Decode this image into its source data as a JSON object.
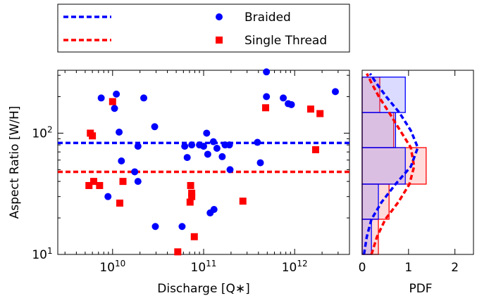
{
  "chart_data": [
    {
      "type": "scatter",
      "xlabel": "Discharge [Q∗]",
      "ylabel": "Aspect Ratio [W/H]",
      "x_scale": "log",
      "y_scale": "log",
      "xlim": [
        2500000000.0,
        4000000000000.0
      ],
      "ylim": [
        10,
        330
      ],
      "x_ticks": [
        {
          "value": 10000000000.0,
          "base": "10",
          "exp": "10"
        },
        {
          "value": 100000000000.0,
          "base": "10",
          "exp": "11"
        },
        {
          "value": 1000000000000.0,
          "base": "10",
          "exp": "12"
        }
      ],
      "y_ticks": [
        {
          "value": 10,
          "base": "10",
          "exp": "1"
        },
        {
          "value": 100,
          "base": "10",
          "exp": "2"
        }
      ],
      "legend": {
        "placement": "top",
        "entries": [
          {
            "label": "",
            "kind": "dashed-line",
            "color": "#0000ff"
          },
          {
            "label": "Braided",
            "kind": "circle",
            "color": "#0000ff"
          },
          {
            "label": "",
            "kind": "dashed-line",
            "color": "#ff0000"
          },
          {
            "label": "Single Thread",
            "kind": "square",
            "color": "#ff0000"
          }
        ]
      },
      "reference_lines": [
        {
          "series": "Braided",
          "y": 83,
          "color": "#0000ff"
        },
        {
          "series": "Single Thread",
          "y": 48,
          "color": "#ff0000"
        }
      ],
      "series": [
        {
          "name": "Braided",
          "marker": "circle",
          "color": "#0000ff",
          "points": [
            [
              490000000000.0,
              320
            ],
            [
              2800000000000.0,
              220
            ],
            [
              11000000000.0,
              210
            ],
            [
              490000000000.0,
              200
            ],
            [
              7500000000.0,
              195
            ],
            [
              22000000000.0,
              195
            ],
            [
              750000000000.0,
              195
            ],
            [
              850000000000.0,
              175
            ],
            [
              920000000000.0,
              172
            ],
            [
              10500000000.0,
              160
            ],
            [
              29000000000.0,
              113
            ],
            [
              11800000000.0,
              102
            ],
            [
              108000000000.0,
              100
            ],
            [
              128000000000.0,
              85
            ],
            [
              172000000000.0,
              80
            ],
            [
              390000000000.0,
              84
            ],
            [
              19000000000.0,
              78
            ],
            [
              62000000000.0,
              78
            ],
            [
              74000000000.0,
              80
            ],
            [
              90000000000.0,
              80
            ],
            [
              100000000000.0,
              78
            ],
            [
              140000000000.0,
              75
            ],
            [
              192000000000.0,
              80
            ],
            [
              160000000000.0,
              64
            ],
            [
              111000000000.0,
              67
            ],
            [
              66000000000.0,
              63
            ],
            [
              12500000000.0,
              59
            ],
            [
              420000000000.0,
              57
            ],
            [
              17500000000.0,
              48
            ],
            [
              195000000000.0,
              50
            ],
            [
              19000000000.0,
              40
            ],
            [
              8900000000.0,
              30
            ],
            [
              118000000000.0,
              22
            ],
            [
              130000000000.0,
              23.5
            ],
            [
              29500000000.0,
              17
            ],
            [
              58000000000.0,
              17
            ]
          ]
        },
        {
          "name": "Single Thread",
          "marker": "square",
          "color": "#ff0000",
          "points": [
            [
              480000000000.0,
              162
            ],
            [
              1500000000000.0,
              158
            ],
            [
              1900000000000.0,
              145
            ],
            [
              10000000000.0,
              182
            ],
            [
              5700000000.0,
              100
            ],
            [
              6000000000.0,
              95
            ],
            [
              1700000000000.0,
              73
            ],
            [
              13000000000.0,
              40
            ],
            [
              6200000000.0,
              40
            ],
            [
              5500000000.0,
              37
            ],
            [
              7200000000.0,
              37
            ],
            [
              72000000000.0,
              37
            ],
            [
              74000000000.0,
              32
            ],
            [
              74000000000.0,
              30
            ],
            [
              71000000000.0,
              27
            ],
            [
              270000000000.0,
              27.5
            ],
            [
              12000000000.0,
              26.5
            ],
            [
              79000000000.0,
              14
            ],
            [
              52000000000.0,
              10.5
            ]
          ]
        }
      ]
    },
    {
      "type": "area",
      "xlabel": "PDF",
      "ylabel": "",
      "xlim": [
        0,
        2.4
      ],
      "ylim": [
        10,
        330
      ],
      "y_scale": "log",
      "x_ticks": [
        0,
        1,
        2
      ],
      "series": [
        {
          "name": "Braided",
          "color": "#0000ff",
          "histogram": [
            {
              "y0": 10,
              "y1": 19.5,
              "pdf": 0.2
            },
            {
              "y0": 19.5,
              "y1": 38,
              "pdf": 0.35
            },
            {
              "y0": 38,
              "y1": 76,
              "pdf": 0.93
            },
            {
              "y0": 76,
              "y1": 148,
              "pdf": 0.72
            },
            {
              "y0": 148,
              "y1": 290,
              "pdf": 0.93
            }
          ],
          "curve": [
            [
              10,
              0.04
            ],
            [
              14,
              0.1
            ],
            [
              19.5,
              0.2
            ],
            [
              27,
              0.42
            ],
            [
              38,
              0.72
            ],
            [
              53,
              1.05
            ],
            [
              76,
              1.2
            ],
            [
              105,
              1.05
            ],
            [
              148,
              0.8
            ],
            [
              200,
              0.52
            ],
            [
              260,
              0.3
            ],
            [
              310,
              0.17
            ]
          ]
        },
        {
          "name": "Single Thread",
          "color": "#ff0000",
          "histogram": [
            {
              "y0": 10,
              "y1": 19.5,
              "pdf": 0.35
            },
            {
              "y0": 19.5,
              "y1": 38,
              "pdf": 0.58
            },
            {
              "y0": 38,
              "y1": 76,
              "pdf": 1.38
            },
            {
              "y0": 76,
              "y1": 148,
              "pdf": 0.68
            },
            {
              "y0": 148,
              "y1": 290,
              "pdf": 0.38
            }
          ],
          "curve": [
            [
              10,
              0.2
            ],
            [
              14,
              0.32
            ],
            [
              19.5,
              0.5
            ],
            [
              27,
              0.78
            ],
            [
              38,
              1.02
            ],
            [
              53,
              1.12
            ],
            [
              76,
              1.05
            ],
            [
              105,
              0.82
            ],
            [
              148,
              0.58
            ],
            [
              200,
              0.36
            ],
            [
              260,
              0.2
            ],
            [
              310,
              0.1
            ]
          ]
        }
      ]
    }
  ]
}
